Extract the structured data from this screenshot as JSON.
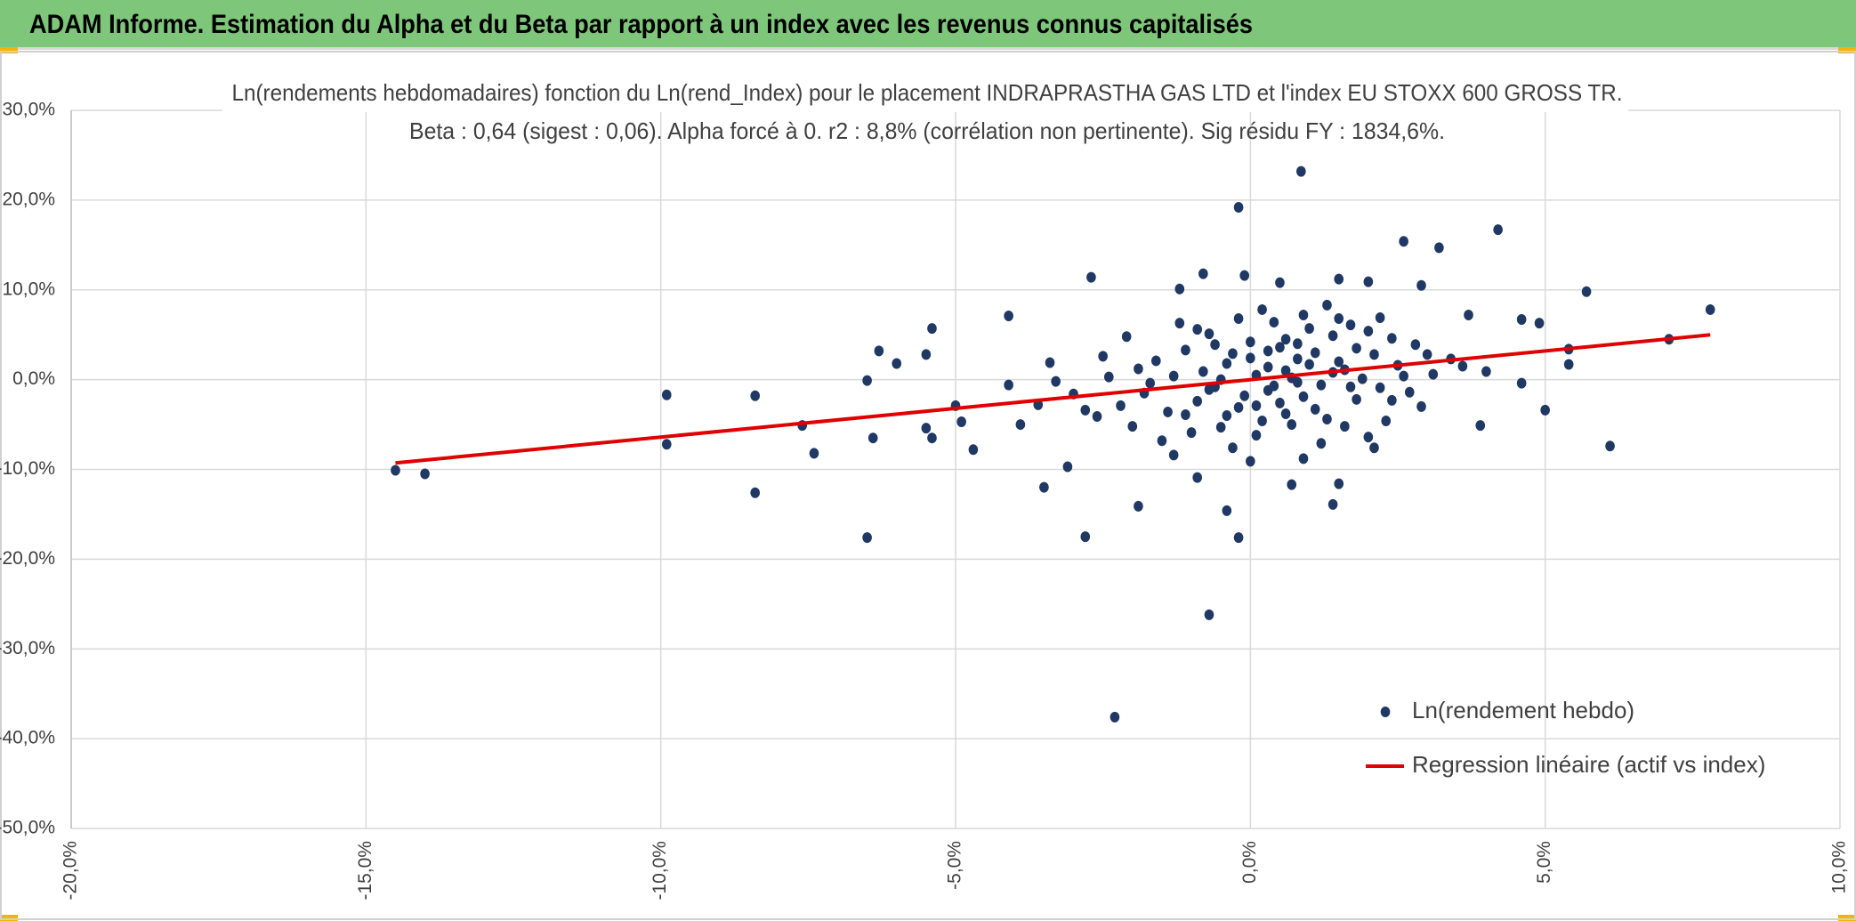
{
  "header": {
    "title": "ADAM Informe. Estimation du Alpha et du Beta par rapport à un index avec les revenus connus capitalisés"
  },
  "chart_data": {
    "type": "scatter",
    "title": "Ln(rendements hebdomadaires) fonction du Ln(rend_Index) pour le placement INDRAPRASTHA GAS LTD et l'index EU STOXX 600 GROSS TR.",
    "subtitle": "Beta : 0,64 (sigest : 0,06). Alpha forcé à 0. r2 : 8,8% (corrélation non pertinente). Sig résidu FY : 1834,6%.",
    "xlim": [
      -20,
      10
    ],
    "xticks": [
      {
        "value": -20,
        "label": "-20,0%"
      },
      {
        "value": -15,
        "label": "-15,0%"
      },
      {
        "value": -10,
        "label": "-10,0%"
      },
      {
        "value": -5,
        "label": "-5,0%"
      },
      {
        "value": 0,
        "label": "0,0%"
      },
      {
        "value": 5,
        "label": "5,0%"
      },
      {
        "value": 10,
        "label": "10,0%"
      }
    ],
    "ylim": [
      -50,
      30
    ],
    "yticks": [
      {
        "value": 30,
        "label": "30,0%"
      },
      {
        "value": 20,
        "label": "20,0%"
      },
      {
        "value": 10,
        "label": "10,0%"
      },
      {
        "value": 0,
        "label": "0,0%"
      },
      {
        "value": -10,
        "label": "-10,0%"
      },
      {
        "value": -20,
        "label": "-20,0%"
      },
      {
        "value": -30,
        "label": "-30,0%"
      },
      {
        "value": -40,
        "label": "-40,0%"
      },
      {
        "value": -50,
        "label": "-50,0%"
      }
    ],
    "grid": true,
    "legend": "lower right",
    "series": [
      {
        "name": "Ln(rendement hebdo)",
        "color": "#203864",
        "type": "scatter",
        "x": [
          0.86,
          -0.2,
          5.7,
          7.8,
          7.1,
          6.1,
          5.0,
          -14.5,
          -14.0,
          -9.9,
          -9.9,
          -8.4,
          -8.4,
          -6.5,
          -2.8,
          -2.3,
          -0.7,
          -0.2,
          -1.9,
          -0.4,
          1.4,
          1.5,
          2.6,
          3.2,
          4.2,
          2.9,
          -2.7,
          -4.1,
          -6.3,
          -5.4,
          -7.6,
          -7.4,
          -6.5,
          -6.4,
          -6.0,
          -5.5,
          -5.5,
          -5.4,
          -4.7,
          -4.9,
          -5.0,
          -3.5,
          -3.1,
          -1.2,
          -0.8,
          -0.1,
          0.5,
          1.5,
          2.0,
          3.7,
          3.9,
          4.6,
          4.6,
          4.9,
          5.4,
          5.4,
          -0.9,
          0.7,
          2.1,
          0.1,
          0.3,
          -0.4,
          0.8,
          1.2,
          -0.9,
          0.5,
          1.6,
          -0.2,
          0.9,
          2.1,
          -1.3,
          0.0,
          1.4,
          -0.6,
          0.7,
          2.5,
          -1.8,
          0.2,
          1.0,
          -0.3,
          1.8,
          -1.1,
          0.6,
          2.8,
          -2.2,
          0.4,
          1.3,
          -0.7,
          2.2,
          -1.6,
          0.9,
          0.1,
          3.1,
          -2.6,
          1.7,
          -0.5,
          2.4,
          -1.4,
          0.3,
          1.1,
          -0.8,
          1.9,
          -0.1,
          0.6,
          2.7,
          -1.9,
          1.5,
          -1.0,
          0.8,
          3.4,
          -2.4,
          0.2,
          1.2,
          -0.3,
          2.0,
          -3.0,
          0.5,
          1.6,
          -1.2,
          0.0,
          2.9,
          -2.1,
          1.4,
          -0.6,
          0.7,
          3.6,
          -2.8,
          1.0,
          -0.4,
          2.3,
          -1.5,
          0.4,
          1.8,
          -0.9,
          2.6,
          -3.3,
          0.9,
          1.3,
          -0.2,
          -1.7,
          0.1,
          2.2,
          -2.5,
          1.1,
          -0.7,
          3.0,
          -3.6,
          0.6,
          1.7,
          -1.1,
          0.3,
          2.4,
          -2.0,
          1.5,
          -0.5,
          0.8,
          -1.3,
          4.0,
          -4.1,
          -3.9,
          -3.4,
          2.0,
          0.0
        ],
        "values": [
          23.2,
          19.2,
          9.8,
          7.8,
          4.5,
          -7.4,
          -3.4,
          -10.1,
          -10.5,
          -1.7,
          -7.2,
          -1.8,
          -12.6,
          -17.6,
          -17.5,
          -37.6,
          -26.2,
          -17.6,
          -14.1,
          -14.6,
          -13.9,
          -11.6,
          15.4,
          14.7,
          16.7,
          10.5,
          11.4,
          7.1,
          3.2,
          5.7,
          -5.1,
          -8.2,
          -0.1,
          -6.5,
          1.8,
          2.8,
          -5.4,
          -6.5,
          -7.8,
          -4.7,
          -2.9,
          -12.0,
          -9.7,
          10.1,
          11.8,
          11.6,
          10.8,
          11.2,
          10.9,
          7.2,
          -5.1,
          -0.4,
          6.7,
          6.3,
          3.4,
          1.7,
          -10.9,
          -11.7,
          -7.6,
          0.5,
          -1.2,
          1.8,
          2.3,
          -0.6,
          -2.4,
          3.6,
          1.1,
          -3.1,
          -1.9,
          2.8,
          0.4,
          4.2,
          4.9,
          -0.8,
          0.2,
          1.6,
          -1.5,
          -4.6,
          5.7,
          2.9,
          -2.2,
          3.3,
          -3.8,
          3.9,
          -2.9,
          6.4,
          -4.4,
          5.1,
          -0.9,
          2.1,
          7.2,
          -6.2,
          0.6,
          -4.1,
          6.1,
          -5.3,
          4.6,
          -3.6,
          1.4,
          3.0,
          0.9,
          0.1,
          -1.8,
          4.5,
          -1.4,
          1.2,
          2.0,
          -5.9,
          -0.3,
          2.3,
          0.3,
          7.8,
          -7.1,
          -7.6,
          5.4,
          -1.6,
          -2.6,
          -5.2,
          6.3,
          2.4,
          -3.0,
          4.8,
          0.8,
          3.9,
          -5.0,
          1.5,
          -3.4,
          1.7,
          -4.0,
          -4.6,
          -6.8,
          -0.7,
          3.5,
          5.6,
          0.4,
          -0.2,
          -8.8,
          8.3,
          6.8,
          -0.4,
          -2.9,
          6.9,
          2.6,
          -3.3,
          -1.1,
          2.8,
          -2.8,
          1.0,
          -0.8,
          -3.9,
          3.2,
          -2.3,
          -5.2,
          6.8,
          0.0,
          4.0,
          -8.4,
          0.9,
          -0.6,
          -5.0,
          1.9,
          -6.4,
          -9.1
        ]
      },
      {
        "name": "Regression linéaire (actif vs index)",
        "color": "#e00000",
        "type": "line",
        "x": [
          -14.5,
          7.8
        ],
        "values": [
          -9.28,
          4.99
        ]
      }
    ]
  }
}
